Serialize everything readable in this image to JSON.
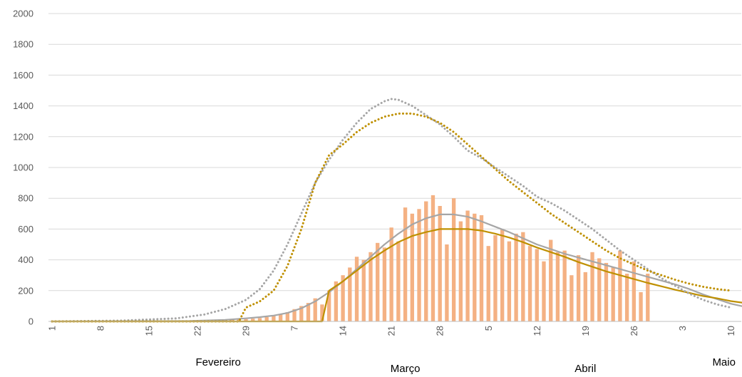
{
  "chart_data": {
    "type": "bar",
    "title": "",
    "xlabel": "",
    "ylabel": "",
    "ylim": [
      0,
      2000
    ],
    "yticks": [
      0,
      200,
      400,
      600,
      800,
      1000,
      1200,
      1400,
      1600,
      1800,
      2000
    ],
    "grid": "horizontal",
    "legend": "none",
    "x_start": "Feb 1",
    "x_days": 100,
    "xtick_labels": [
      {
        "day": 0,
        "label": "1"
      },
      {
        "day": 7,
        "label": "8"
      },
      {
        "day": 14,
        "label": "15"
      },
      {
        "day": 21,
        "label": "22"
      },
      {
        "day": 28,
        "label": "29"
      },
      {
        "day": 35,
        "label": "7"
      },
      {
        "day": 42,
        "label": "14"
      },
      {
        "day": 49,
        "label": "21"
      },
      {
        "day": 56,
        "label": "28"
      },
      {
        "day": 63,
        "label": "5"
      },
      {
        "day": 70,
        "label": "12"
      },
      {
        "day": 77,
        "label": "19"
      },
      {
        "day": 84,
        "label": "26"
      },
      {
        "day": 91,
        "label": "3"
      },
      {
        "day": 98,
        "label": "10"
      }
    ],
    "month_labels": [
      {
        "label": "Fevereiro",
        "day": 24
      },
      {
        "label": "Março",
        "day": 51
      },
      {
        "label": "Abril",
        "day": 77
      },
      {
        "label": "Maio",
        "day": 97
      }
    ],
    "colors": {
      "bars": "#f4b183",
      "grey": "#a6a6a6",
      "gold": "#bf9000",
      "grid": "#d9d9d9",
      "axis": "#bfbfbf"
    },
    "bars": {
      "start_day": 19,
      "values": [
        2,
        3,
        3,
        4,
        5,
        6,
        8,
        10,
        12,
        15,
        18,
        22,
        28,
        35,
        45,
        60,
        80,
        100,
        120,
        150,
        110,
        200,
        260,
        300,
        350,
        420,
        400,
        450,
        510,
        480,
        610,
        520,
        740,
        700,
        730,
        780,
        820,
        750,
        500,
        800,
        650,
        720,
        700,
        690,
        490,
        560,
        600,
        520,
        570,
        580,
        490,
        470,
        390,
        530,
        450,
        460,
        300,
        430,
        320,
        450,
        410,
        380,
        350,
        460,
        310,
        390,
        190,
        310
      ]
    },
    "series": [
      {
        "style": "solid",
        "color": "grey",
        "points": [
          [
            0,
            0
          ],
          [
            20,
            3
          ],
          [
            25,
            10
          ],
          [
            28,
            20
          ],
          [
            30,
            28
          ],
          [
            32,
            38
          ],
          [
            34,
            55
          ],
          [
            36,
            85
          ],
          [
            38,
            130
          ],
          [
            40,
            190
          ],
          [
            42,
            260
          ],
          [
            44,
            340
          ],
          [
            46,
            420
          ],
          [
            48,
            500
          ],
          [
            50,
            570
          ],
          [
            52,
            630
          ],
          [
            54,
            670
          ],
          [
            56,
            695
          ],
          [
            58,
            695
          ],
          [
            60,
            680
          ],
          [
            62,
            650
          ],
          [
            64,
            615
          ],
          [
            66,
            580
          ],
          [
            68,
            540
          ],
          [
            70,
            500
          ],
          [
            72,
            470
          ],
          [
            74,
            440
          ],
          [
            76,
            415
          ],
          [
            78,
            390
          ],
          [
            80,
            365
          ],
          [
            82,
            340
          ],
          [
            84,
            315
          ],
          [
            86,
            290
          ],
          [
            88,
            265
          ],
          [
            90,
            240
          ],
          [
            92,
            210
          ],
          [
            94,
            175
          ],
          [
            96,
            145
          ],
          [
            98,
            115
          ],
          [
            100,
            95
          ]
        ]
      },
      {
        "style": "solid",
        "color": "gold",
        "points": [
          [
            0,
            0
          ],
          [
            39,
            0
          ],
          [
            40,
            200
          ],
          [
            42,
            260
          ],
          [
            44,
            330
          ],
          [
            46,
            400
          ],
          [
            48,
            460
          ],
          [
            50,
            515
          ],
          [
            52,
            555
          ],
          [
            54,
            580
          ],
          [
            56,
            600
          ],
          [
            58,
            600
          ],
          [
            60,
            600
          ],
          [
            62,
            590
          ],
          [
            64,
            570
          ],
          [
            66,
            545
          ],
          [
            68,
            515
          ],
          [
            70,
            480
          ],
          [
            72,
            450
          ],
          [
            74,
            420
          ],
          [
            76,
            385
          ],
          [
            78,
            355
          ],
          [
            80,
            325
          ],
          [
            82,
            300
          ],
          [
            84,
            275
          ],
          [
            86,
            250
          ],
          [
            88,
            228
          ],
          [
            90,
            205
          ],
          [
            92,
            185
          ],
          [
            94,
            165
          ],
          [
            96,
            150
          ],
          [
            98,
            132
          ],
          [
            100,
            120
          ]
        ]
      },
      {
        "style": "dotted",
        "color": "grey",
        "points": [
          [
            0,
            0
          ],
          [
            10,
            5
          ],
          [
            18,
            20
          ],
          [
            22,
            45
          ],
          [
            25,
            80
          ],
          [
            28,
            140
          ],
          [
            30,
            210
          ],
          [
            32,
            330
          ],
          [
            34,
            500
          ],
          [
            36,
            700
          ],
          [
            38,
            900
          ],
          [
            40,
            1050
          ],
          [
            42,
            1180
          ],
          [
            44,
            1290
          ],
          [
            46,
            1380
          ],
          [
            48,
            1430
          ],
          [
            49,
            1445
          ],
          [
            50,
            1440
          ],
          [
            52,
            1400
          ],
          [
            54,
            1340
          ],
          [
            56,
            1280
          ],
          [
            58,
            1200
          ],
          [
            60,
            1110
          ],
          [
            62,
            1060
          ],
          [
            64,
            1000
          ],
          [
            66,
            940
          ],
          [
            68,
            880
          ],
          [
            70,
            810
          ],
          [
            72,
            770
          ],
          [
            74,
            720
          ],
          [
            76,
            660
          ],
          [
            78,
            600
          ],
          [
            80,
            530
          ],
          [
            82,
            460
          ],
          [
            84,
            400
          ],
          [
            86,
            340
          ],
          [
            88,
            280
          ],
          [
            90,
            230
          ],
          [
            92,
            180
          ],
          [
            94,
            140
          ],
          [
            96,
            110
          ],
          [
            98,
            90
          ]
        ]
      },
      {
        "style": "dotted",
        "color": "gold",
        "points": [
          [
            0,
            0
          ],
          [
            27,
            0
          ],
          [
            28,
            90
          ],
          [
            30,
            130
          ],
          [
            32,
            200
          ],
          [
            34,
            360
          ],
          [
            36,
            600
          ],
          [
            38,
            900
          ],
          [
            40,
            1080
          ],
          [
            42,
            1150
          ],
          [
            44,
            1230
          ],
          [
            46,
            1290
          ],
          [
            48,
            1330
          ],
          [
            50,
            1350
          ],
          [
            52,
            1350
          ],
          [
            54,
            1330
          ],
          [
            56,
            1290
          ],
          [
            58,
            1230
          ],
          [
            60,
            1150
          ],
          [
            62,
            1070
          ],
          [
            64,
            990
          ],
          [
            66,
            910
          ],
          [
            68,
            840
          ],
          [
            70,
            770
          ],
          [
            72,
            700
          ],
          [
            74,
            640
          ],
          [
            76,
            580
          ],
          [
            78,
            520
          ],
          [
            80,
            460
          ],
          [
            82,
            410
          ],
          [
            84,
            370
          ],
          [
            86,
            330
          ],
          [
            88,
            300
          ],
          [
            90,
            270
          ],
          [
            92,
            245
          ],
          [
            94,
            225
          ],
          [
            96,
            210
          ],
          [
            98,
            200
          ]
        ]
      }
    ]
  }
}
